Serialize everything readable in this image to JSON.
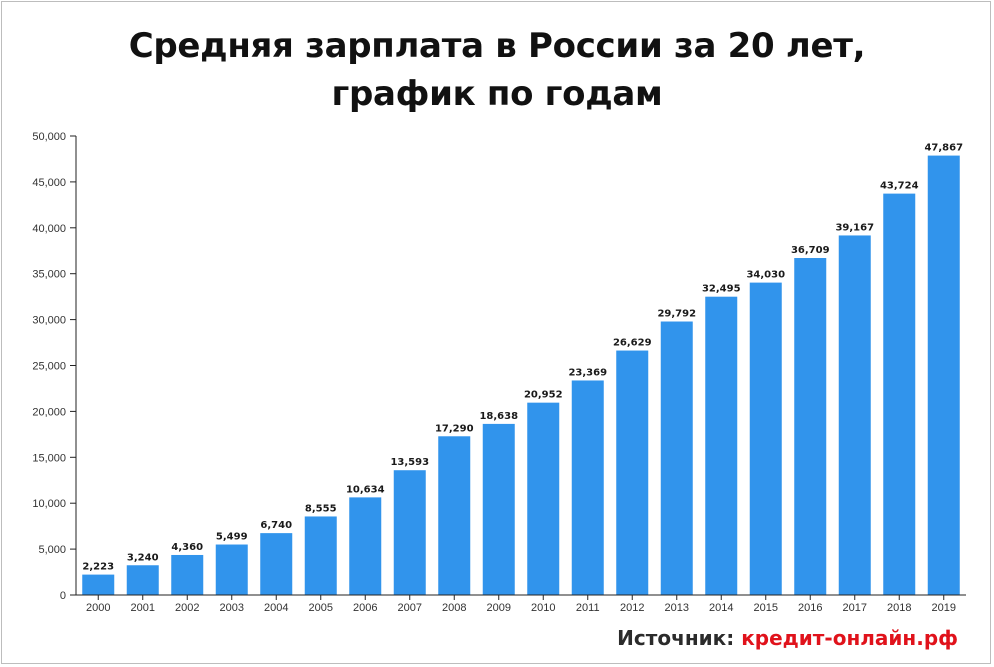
{
  "chart_title_line1": "Средняя зарплата в России за 20 лет,",
  "chart_title_line2": "график по годам",
  "source": {
    "label": "Источник:",
    "link": "кредит-онлайн.рф"
  },
  "colors": {
    "bar": "#3194ec",
    "axis": "#222222",
    "tick_text": "#333333",
    "value_text": "#1a1a1a",
    "source_link": "#e0121b"
  },
  "chart_data": {
    "type": "bar",
    "title": "Средняя зарплата в России за 20 лет, график по годам",
    "xlabel": "",
    "ylabel": "",
    "ylim": [
      0,
      50000
    ],
    "yticks": [
      "0",
      "5,000",
      "10,000",
      "15,000",
      "20,000",
      "25,000",
      "30,000",
      "35,000",
      "40,000",
      "45,000",
      "50,000"
    ],
    "ytick_values": [
      0,
      5000,
      10000,
      15000,
      20000,
      25000,
      30000,
      35000,
      40000,
      45000,
      50000
    ],
    "grid": false,
    "categories": [
      "2000",
      "2001",
      "2002",
      "2003",
      "2004",
      "2005",
      "2006",
      "2007",
      "2008",
      "2009",
      "2010",
      "2011",
      "2012",
      "2013",
      "2014",
      "2015",
      "2016",
      "2017",
      "2018",
      "2019"
    ],
    "values": [
      2223,
      3240,
      4360,
      5499,
      6740,
      8555,
      10634,
      13593,
      17290,
      18638,
      20952,
      23369,
      26629,
      29792,
      32495,
      34030,
      36709,
      39167,
      43724,
      47867
    ],
    "value_labels": [
      "2,223",
      "3,240",
      "4,360",
      "5,499",
      "6,740",
      "8,555",
      "10,634",
      "13,593",
      "17,290",
      "18,638",
      "20,952",
      "23,369",
      "26,629",
      "29,792",
      "32,495",
      "34,030",
      "36,709",
      "39,167",
      "43,724",
      "47,867"
    ]
  }
}
